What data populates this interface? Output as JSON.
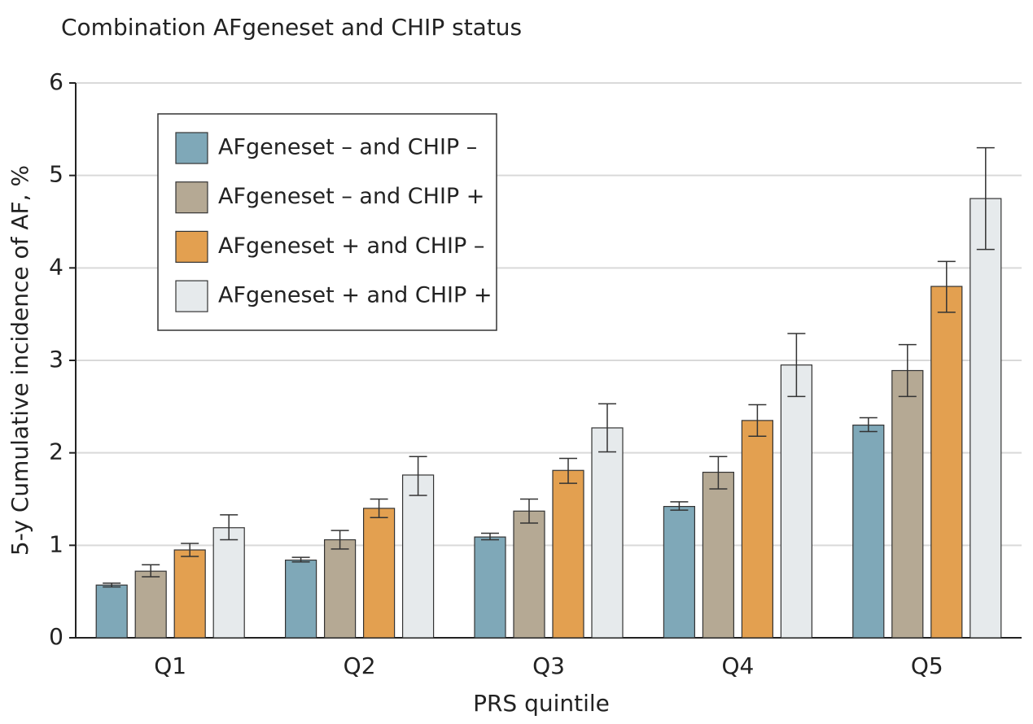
{
  "chart_data": {
    "type": "bar",
    "title": "Combination AFgeneset and CHIP status",
    "x_label": "PRS quintile",
    "y_label": "5-y Cumulative incidence of AF, %",
    "categories": [
      "Q1",
      "Q2",
      "Q3",
      "Q4",
      "Q5"
    ],
    "series": [
      {
        "name": "AFgeneset – and CHIP –",
        "color": "#7fa8b8",
        "values": [
          0.57,
          0.84,
          1.09,
          1.42,
          2.3
        ],
        "ci_low": [
          0.55,
          0.82,
          1.06,
          1.38,
          2.23
        ],
        "ci_high": [
          0.59,
          0.87,
          1.13,
          1.47,
          2.38
        ]
      },
      {
        "name": "AFgeneset – and CHIP +",
        "color": "#b5a994",
        "values": [
          0.72,
          1.06,
          1.37,
          1.79,
          2.89
        ],
        "ci_low": [
          0.66,
          0.96,
          1.24,
          1.61,
          2.61
        ],
        "ci_high": [
          0.79,
          1.16,
          1.5,
          1.96,
          3.17
        ]
      },
      {
        "name": "AFgeneset + and CHIP –",
        "color": "#e3a050",
        "values": [
          0.95,
          1.4,
          1.81,
          2.35,
          3.8
        ],
        "ci_low": [
          0.88,
          1.3,
          1.67,
          2.18,
          3.52
        ],
        "ci_high": [
          1.02,
          1.5,
          1.94,
          2.52,
          4.07
        ]
      },
      {
        "name": "AFgeneset + and CHIP +",
        "color": "#e6eaec",
        "values": [
          1.19,
          1.76,
          2.27,
          2.95,
          4.75
        ],
        "ci_low": [
          1.06,
          1.54,
          2.01,
          2.61,
          4.2
        ],
        "ci_high": [
          1.33,
          1.96,
          2.53,
          3.29,
          5.3
        ]
      }
    ],
    "ylim": [
      0,
      6
    ],
    "yticks": [
      0,
      1,
      2,
      3,
      4,
      5,
      6
    ],
    "grid": true,
    "legend": "upper left"
  }
}
